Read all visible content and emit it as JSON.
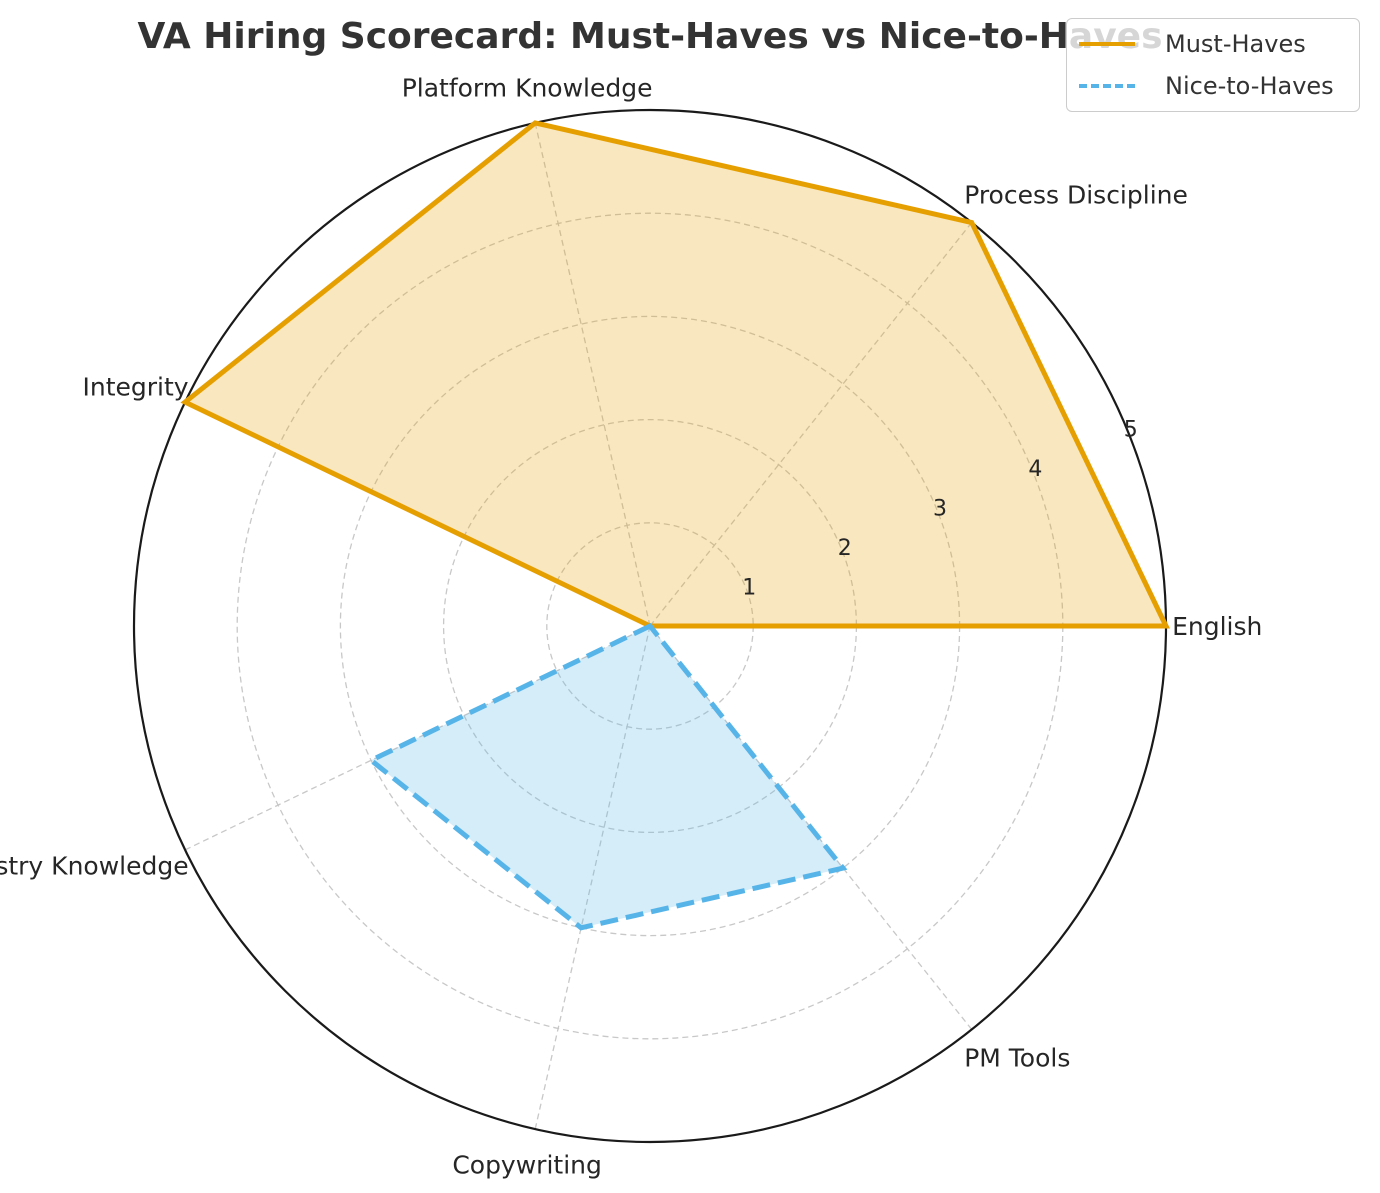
{
  "chart_data": {
    "type": "radar",
    "title": "VA Hiring Scorecard: Must-Haves vs Nice-to-Haves",
    "categories": [
      "English",
      "Process Discipline",
      "Platform Knowledge",
      "Integrity",
      "Industry Knowledge",
      "Copywriting",
      "PM Tools"
    ],
    "radial_ticks": [
      "1",
      "2",
      "3",
      "4",
      "5"
    ],
    "rlim": [
      0,
      5
    ],
    "grid": true,
    "legend_position": "top-right",
    "series": [
      {
        "name": "Must-Haves",
        "values": [
          5,
          5,
          5,
          5,
          0,
          0,
          0
        ],
        "color": "#E69F00",
        "line_style": "solid"
      },
      {
        "name": "Nice-to-Haves",
        "values": [
          0,
          0,
          0,
          0,
          3,
          3,
          3
        ],
        "color": "#56B4E9",
        "line_style": "dashed"
      }
    ]
  }
}
